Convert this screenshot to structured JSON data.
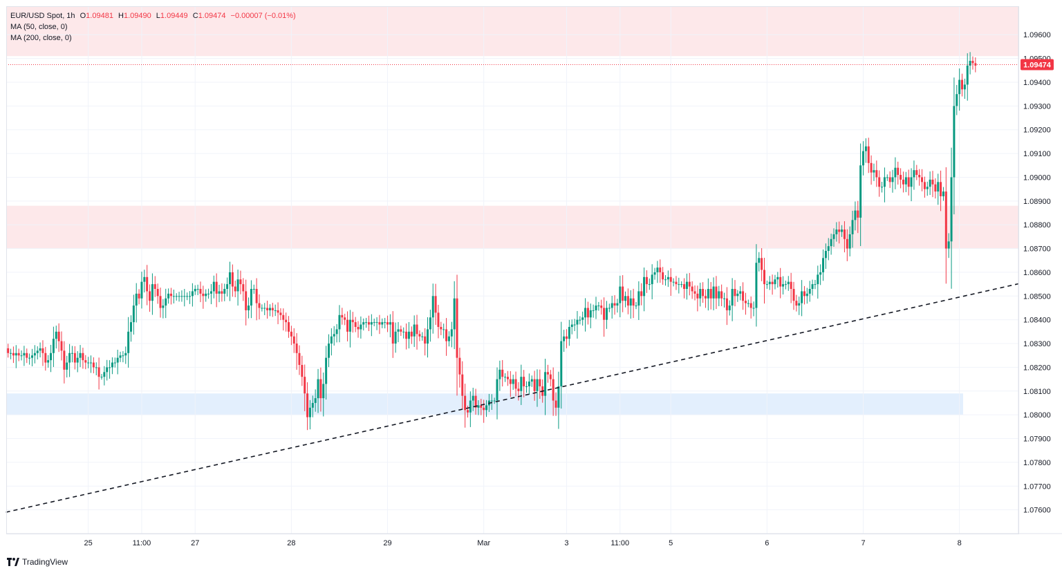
{
  "legend": {
    "symbol": "EUR/USD Spot, 1h",
    "open_label": "O",
    "open": "1.09481",
    "high_label": "H",
    "high": "1.09490",
    "low_label": "L",
    "low": "1.09449",
    "close_label": "C",
    "close": "1.09474",
    "change": "−0.00007 (−0.01%)",
    "ma50": "MA (50, close, 0)",
    "ma200": "MA (200, close, 0)"
  },
  "brand": {
    "name": "TradingView",
    "icon": "tradingview-logo-icon"
  },
  "colors": {
    "up": "#089981",
    "down": "#f23645",
    "zone_red": "#fde8ea",
    "zone_blue": "#e3effd",
    "grid": "#f0f3fa",
    "trendline": "#131722"
  },
  "chart_data": {
    "type": "candlestick",
    "instrument": "EUR/USD Spot",
    "timeframe": "1h",
    "ylim": [
      1.075,
      1.0972
    ],
    "y_ticks": [
      "1.07600",
      "1.07700",
      "1.07800",
      "1.07900",
      "1.08000",
      "1.08100",
      "1.08200",
      "1.08300",
      "1.08400",
      "1.08500",
      "1.08600",
      "1.08700",
      "1.08800",
      "1.08900",
      "1.09000",
      "1.09100",
      "1.09200",
      "1.09300",
      "1.09400",
      "1.09500",
      "1.09600"
    ],
    "x_ticks": [
      {
        "label": "25",
        "index": 30
      },
      {
        "label": "11:00",
        "index": 50
      },
      {
        "label": "27",
        "index": 70
      },
      {
        "label": "28",
        "index": 106
      },
      {
        "label": "29",
        "index": 142
      },
      {
        "label": "Mar",
        "index": 178
      },
      {
        "label": "3",
        "index": 209
      },
      {
        "label": "11:00",
        "index": 229
      },
      {
        "label": "5",
        "index": 248
      },
      {
        "label": "6",
        "index": 284
      },
      {
        "label": "7",
        "index": 320
      },
      {
        "label": "8",
        "index": 356
      }
    ],
    "last_price": 1.09474,
    "last_price_label": "1.09474",
    "zones": [
      {
        "from": 1.0951,
        "to": 1.0972,
        "color": "red"
      },
      {
        "from": 1.087,
        "to": 1.0888,
        "color": "red"
      },
      {
        "from": 1.08,
        "to": 1.0809,
        "color": "blue"
      }
    ],
    "trendline": {
      "start": {
        "index": 0,
        "price": 1.0759
      },
      "end": {
        "index": 378,
        "price": 1.08554
      }
    },
    "closes": [
      1.0826,
      1.0826,
      1.0825,
      1.0826,
      1.0825,
      1.0825,
      1.0826,
      1.0824,
      1.0824,
      1.0825,
      1.0826,
      1.0827,
      1.0828,
      1.0826,
      1.0822,
      1.0823,
      1.0826,
      1.0832,
      1.0835,
      1.0831,
      1.0827,
      1.0819,
      1.0822,
      1.0826,
      1.0826,
      1.0822,
      1.0824,
      1.0826,
      1.0823,
      1.0822,
      1.0822,
      1.0822,
      1.082,
      1.082,
      1.0816,
      1.0816,
      1.0818,
      1.082,
      1.082,
      1.0822,
      1.0822,
      1.0824,
      1.0825,
      1.0825,
      1.0826,
      1.0835,
      1.0839,
      1.0846,
      1.0851,
      1.0849,
      1.0856,
      1.0858,
      1.0852,
      1.0848,
      1.0855,
      1.0853,
      1.085,
      1.0845,
      1.0846,
      1.0849,
      1.0851,
      1.085,
      1.085,
      1.085,
      1.085,
      1.085,
      1.085,
      1.085,
      1.085,
      1.0852,
      1.0853,
      1.0853,
      1.0851,
      1.085,
      1.0851,
      1.0851,
      1.0852,
      1.0856,
      1.0851,
      1.0852,
      1.0851,
      1.0853,
      1.0855,
      1.086,
      1.0854,
      1.0852,
      1.0857,
      1.0855,
      1.0852,
      1.0844,
      1.0846,
      1.0853,
      1.0853,
      1.0847,
      1.0845,
      1.0845,
      1.0845,
      1.0844,
      1.0845,
      1.0844,
      1.0844,
      1.0843,
      1.0842,
      1.084,
      1.0839,
      1.0835,
      1.0833,
      1.083,
      1.0826,
      1.0821,
      1.0816,
      1.0809,
      1.0799,
      1.0803,
      1.0805,
      1.0807,
      1.0815,
      1.0807,
      1.0813,
      1.0824,
      1.083,
      1.0833,
      1.0834,
      1.0836,
      1.0842,
      1.0841,
      1.084,
      1.0835,
      1.084,
      1.0839,
      1.0837,
      1.0836,
      1.0838,
      1.0839,
      1.0839,
      1.0838,
      1.0839,
      1.0839,
      1.0839,
      1.0838,
      1.0839,
      1.0839,
      1.0838,
      1.0839,
      1.083,
      1.0835,
      1.0836,
      1.0835,
      1.0835,
      1.0832,
      1.0835,
      1.0833,
      1.0838,
      1.0834,
      1.0833,
      1.0833,
      1.083,
      1.0836,
      1.0841,
      1.085,
      1.0843,
      1.0837,
      1.0836,
      1.0836,
      1.0831,
      1.0833,
      1.0836,
      1.0849,
      1.0824,
      1.0817,
      1.0808,
      1.0802,
      1.0801,
      1.0806,
      1.0808,
      1.0803,
      1.0804,
      1.0803,
      1.0802,
      1.0804,
      1.0806,
      1.0806,
      1.0806,
      1.0815,
      1.0819,
      1.0816,
      1.0816,
      1.0815,
      1.0813,
      1.0815,
      1.0811,
      1.081,
      1.0816,
      1.0812,
      1.0812,
      1.0814,
      1.0815,
      1.081,
      1.0815,
      1.0812,
      1.0808,
      1.0818,
      1.0817,
      1.0815,
      1.0806,
      1.0803,
      1.0812,
      1.0831,
      1.0833,
      1.0832,
      1.0837,
      1.0838,
      1.0838,
      1.084,
      1.084,
      1.0841,
      1.0845,
      1.0841,
      1.0844,
      1.0844,
      1.0846,
      1.0846,
      1.0845,
      1.084,
      1.0845,
      1.0845,
      1.0847,
      1.0846,
      1.0847,
      1.0854,
      1.0848,
      1.085,
      1.0846,
      1.0849,
      1.0846,
      1.0846,
      1.0852,
      1.085,
      1.0858,
      1.0855,
      1.0855,
      1.0859,
      1.086,
      1.0862,
      1.086,
      1.0857,
      1.0857,
      1.0858,
      1.0856,
      1.0856,
      1.0855,
      1.0855,
      1.0855,
      1.0853,
      1.0856,
      1.0854,
      1.0852,
      1.0851,
      1.0849,
      1.0853,
      1.085,
      1.0849,
      1.0853,
      1.0849,
      1.0854,
      1.0849,
      1.0852,
      1.0849,
      1.0849,
      1.0844,
      1.0846,
      1.0853,
      1.085,
      1.0851,
      1.0852,
      1.0848,
      1.0847,
      1.0847,
      1.0845,
      1.0845,
      1.0864,
      1.0866,
      1.0861,
      1.0855,
      1.0855,
      1.0856,
      1.0855,
      1.0857,
      1.0858,
      1.0854,
      1.0855,
      1.0855,
      1.0856,
      1.0853,
      1.0848,
      1.0846,
      1.0847,
      1.0852,
      1.085,
      1.0851,
      1.0853,
      1.0855,
      1.0855,
      1.0859,
      1.086,
      1.0866,
      1.0869,
      1.0871,
      1.0874,
      1.0876,
      1.0878,
      1.0877,
      1.0878,
      1.0874,
      1.087,
      1.0876,
      1.0882,
      1.0886,
      1.0883,
      1.0905,
      1.0911,
      1.0913,
      1.0906,
      1.0902,
      1.0903,
      1.09,
      1.0896,
      1.0896,
      1.09,
      1.09,
      1.0898,
      1.09,
      1.0904,
      1.0901,
      1.0899,
      1.0897,
      1.09,
      1.0896,
      1.09,
      1.0903,
      1.0901,
      1.09,
      1.0898,
      1.0895,
      1.0896,
      1.0899,
      1.0897,
      1.0894,
      1.0898,
      1.0892,
      1.0894,
      1.087,
      1.0873,
      1.09,
      1.093,
      1.0935,
      1.0941,
      1.0937,
      1.0939,
      1.0947,
      1.0949,
      1.0948,
      1.0947
    ]
  }
}
